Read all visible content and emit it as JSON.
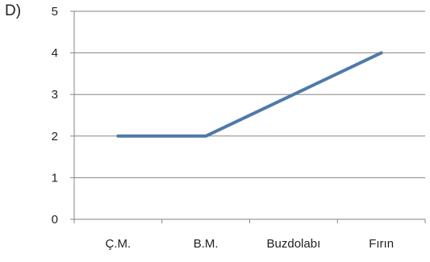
{
  "question": {
    "option_label": "D)"
  },
  "chart_data": {
    "type": "line",
    "categories": [
      "Ç.M.",
      "B.M.",
      "Buzdolabı",
      "Fırın"
    ],
    "series": [
      {
        "values": [
          2,
          2,
          3,
          4
        ],
        "color": "#4f7aa8"
      }
    ],
    "ylim": [
      0,
      5
    ],
    "yticks": [
      0,
      1,
      2,
      3,
      4,
      5
    ],
    "grid": true,
    "axis_color": "#868686",
    "grid_color": "#868686",
    "title": "",
    "xlabel": "",
    "ylabel": ""
  }
}
